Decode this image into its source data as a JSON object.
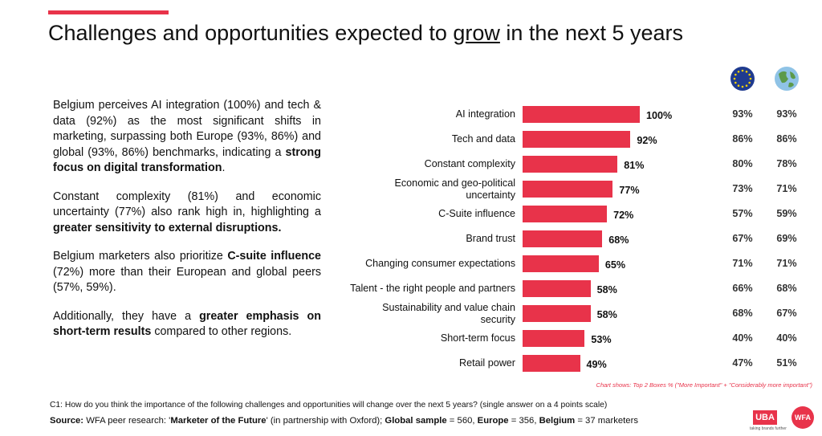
{
  "header": {
    "title": [
      {
        "text": "Challenges and opportunities expected to ",
        "underline": false
      },
      {
        "text": "grow",
        "underline": true
      },
      {
        "text": " in the next 5 years",
        "underline": false
      }
    ]
  },
  "summary": [
    [
      {
        "text": "Belgium perceives AI integration (100%) and tech & data (92%) as the most significant shifts in marketing, surpassing both Europe (93%, 86%) and global (93%, 86%) benchmarks, indicating a ",
        "bold": false
      },
      {
        "text": "strong focus on digital transformation",
        "bold": true
      },
      {
        "text": ".",
        "bold": false
      }
    ],
    [
      {
        "text": "Constant complexity (81%) and economic uncertainty (77%) also rank high in, highlighting a ",
        "bold": false
      },
      {
        "text": "greater sensitivity to external disruptions.",
        "bold": true
      }
    ],
    [
      {
        "text": "Belgium marketers also prioritize ",
        "bold": false
      },
      {
        "text": "C-suite influence",
        "bold": true
      },
      {
        "text": " (72%) more than their European and global peers (57%, 59%).",
        "bold": false
      }
    ],
    [
      {
        "text": "Additionally, they have a ",
        "bold": false
      },
      {
        "text": "greater emphasis on short-term results",
        "bold": true
      },
      {
        "text": " compared to other regions.",
        "bold": false
      }
    ]
  ],
  "chart_data": {
    "type": "bar",
    "orientation": "horizontal",
    "color": "#e8334a",
    "categories": [
      "AI integration",
      "Tech and data",
      "Constant complexity",
      "Economic and geo-political uncertainty",
      "C-Suite influence",
      "Brand trust",
      "Changing consumer expectations",
      "Talent - the right people and partners",
      "Sustainability and value chain security",
      "Short-term focus",
      "Retail power"
    ],
    "values": [
      100,
      92,
      81,
      77,
      72,
      68,
      65,
      58,
      58,
      53,
      49
    ],
    "value_labels": [
      "100%",
      "92%",
      "81%",
      "77%",
      "72%",
      "68%",
      "65%",
      "58%",
      "58%",
      "53%",
      "49%"
    ],
    "xlim": [
      0,
      100
    ],
    "note": "Chart shows: Top 2 Boxes % (\"More Important\" + \"Considerably more important\")"
  },
  "comparison": {
    "europe": [
      "93%",
      "86%",
      "80%",
      "73%",
      "57%",
      "67%",
      "71%",
      "66%",
      "68%",
      "40%",
      "47%"
    ],
    "global": [
      "93%",
      "86%",
      "78%",
      "71%",
      "59%",
      "69%",
      "71%",
      "68%",
      "67%",
      "40%",
      "51%"
    ]
  },
  "footer": {
    "question": "C1: How do you think the importance of the following challenges and opportunities will change over the next 5 years? (single answer on a 4 points scale)",
    "source": [
      {
        "text": "Source:",
        "bold": true
      },
      {
        "text": " WFA peer research: '",
        "bold": false
      },
      {
        "text": "Marketer of the Future",
        "bold": true
      },
      {
        "text": "' (in partnership with Oxford); ",
        "bold": false
      },
      {
        "text": "Global sample",
        "bold": true
      },
      {
        "text": " = 560, ",
        "bold": false
      },
      {
        "text": "Europe",
        "bold": true
      },
      {
        "text": " = 356, ",
        "bold": false
      },
      {
        "text": "Belgium",
        "bold": true
      },
      {
        "text": " = 37 marketers",
        "bold": false
      }
    ]
  },
  "logos": {
    "uba": "UBA",
    "wfa": "WFA",
    "tagline": "taking brands further"
  }
}
